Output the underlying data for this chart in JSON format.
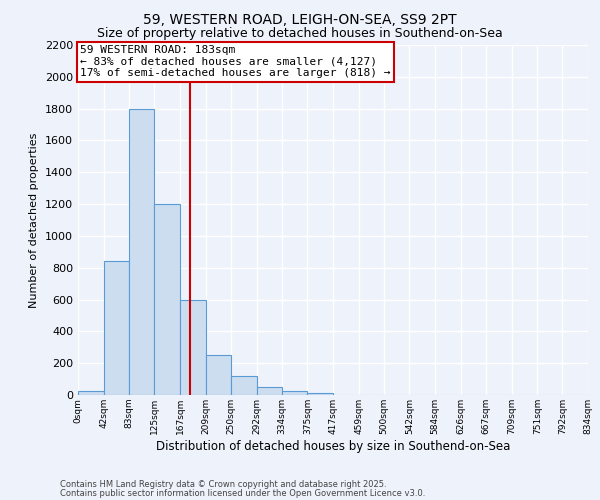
{
  "title1": "59, WESTERN ROAD, LEIGH-ON-SEA, SS9 2PT",
  "title2": "Size of property relative to detached houses in Southend-on-Sea",
  "xlabel": "Distribution of detached houses by size in Southend-on-Sea",
  "ylabel": "Number of detached properties",
  "bar_edges": [
    0,
    42,
    83,
    125,
    167,
    209,
    250,
    292,
    334,
    375,
    417,
    459,
    500,
    542,
    584,
    626,
    667,
    709,
    751,
    792,
    834
  ],
  "bar_heights": [
    25,
    840,
    1800,
    1200,
    600,
    250,
    120,
    50,
    25,
    10,
    2,
    0,
    0,
    0,
    0,
    0,
    0,
    0,
    0,
    0
  ],
  "bar_facecolor": "#ccddf0",
  "bar_edgecolor": "#5b9bd5",
  "vline_x": 183,
  "vline_color": "#cc0000",
  "annotation_text": "59 WESTERN ROAD: 183sqm\n← 83% of detached houses are smaller (4,127)\n17% of semi-detached houses are larger (818) →",
  "annotation_box_edgecolor": "#cc0000",
  "annotation_box_facecolor": "#ffffff",
  "ylim": [
    0,
    2200
  ],
  "yticks": [
    0,
    200,
    400,
    600,
    800,
    1000,
    1200,
    1400,
    1600,
    1800,
    2000,
    2200
  ],
  "xtick_labels": [
    "0sqm",
    "42sqm",
    "83sqm",
    "125sqm",
    "167sqm",
    "209sqm",
    "250sqm",
    "292sqm",
    "334sqm",
    "375sqm",
    "417sqm",
    "459sqm",
    "500sqm",
    "542sqm",
    "584sqm",
    "626sqm",
    "667sqm",
    "709sqm",
    "751sqm",
    "792sqm",
    "834sqm"
  ],
  "footnote1": "Contains HM Land Registry data © Crown copyright and database right 2025.",
  "footnote2": "Contains public sector information licensed under the Open Government Licence v3.0.",
  "bg_color": "#eef2fb",
  "grid_color": "#ffffff",
  "title1_fontsize": 10,
  "title2_fontsize": 9,
  "annotation_fontsize": 8
}
